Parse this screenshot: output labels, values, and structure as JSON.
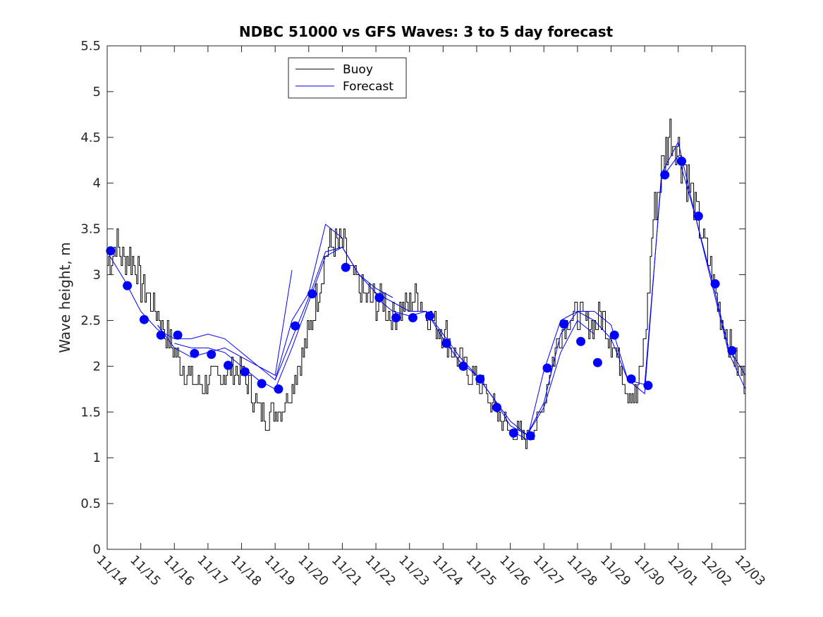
{
  "chart_data": {
    "type": "line",
    "title": "NDBC 51000 vs GFS Waves: 3 to 5 day forecast",
    "xlabel": "",
    "ylabel": "Wave height, m",
    "ylim": [
      0,
      5.5
    ],
    "xlim_days": [
      0,
      19
    ],
    "y_ticks": [
      0,
      0.5,
      1,
      1.5,
      2,
      2.5,
      3,
      3.5,
      4,
      4.5,
      5,
      5.5
    ],
    "y_tick_labels": [
      "0",
      "0.5",
      "1",
      "1.5",
      "2",
      "2.5",
      "3",
      "3.5",
      "4",
      "4.5",
      "5",
      "5.5"
    ],
    "x_tick_labels": [
      "11/14",
      "11/15",
      "11/16",
      "11/17",
      "11/18",
      "11/19",
      "11/20",
      "11/21",
      "11/22",
      "11/23",
      "11/24",
      "11/25",
      "11/26",
      "11/27",
      "11/28",
      "11/29",
      "11/30",
      "12/01",
      "12/02",
      "12/03"
    ],
    "grid": false,
    "legend": {
      "location": "top-left",
      "entries": [
        {
          "label": "Buoy",
          "color": "#000000"
        },
        {
          "label": "Forecast",
          "color": "#0000ff"
        }
      ]
    },
    "buoy_color": "#000000",
    "forecast_color": "#0000ff",
    "marker_color": "#0000ff",
    "buoy_series": {
      "name": "Buoy",
      "x": [
        0,
        0.25,
        0.5,
        0.75,
        1,
        1.25,
        1.5,
        1.75,
        2,
        2.25,
        2.5,
        2.75,
        3,
        3.25,
        3.5,
        3.75,
        4,
        4.25,
        4.5,
        4.75,
        5,
        5.25,
        5.5,
        5.75,
        6,
        6.25,
        6.5,
        6.75,
        7,
        7.25,
        7.5,
        7.75,
        8,
        8.25,
        8.5,
        8.75,
        9,
        9.25,
        9.5,
        9.75,
        10,
        10.25,
        10.5,
        10.75,
        11,
        11.25,
        11.5,
        11.75,
        12,
        12.25,
        12.5,
        12.75,
        13,
        13.25,
        13.5,
        13.75,
        14,
        14.25,
        14.5,
        14.75,
        15,
        15.25,
        15.5,
        15.75,
        16,
        16.25,
        16.5,
        16.75,
        17,
        17.25,
        17.5,
        17.75,
        18,
        18.25,
        18.5,
        18.75,
        19
      ],
      "values": [
        3.1,
        3.35,
        3.15,
        3.2,
        2.9,
        2.75,
        2.55,
        2.35,
        2.15,
        2.0,
        1.85,
        1.8,
        1.85,
        1.9,
        1.9,
        1.95,
        1.9,
        1.75,
        1.55,
        1.45,
        1.5,
        1.6,
        1.8,
        2.05,
        2.35,
        2.8,
        3.25,
        3.35,
        3.3,
        3.0,
        2.85,
        2.75,
        2.7,
        2.7,
        2.55,
        2.6,
        2.7,
        2.75,
        2.6,
        2.45,
        2.4,
        2.2,
        2.05,
        1.95,
        1.85,
        1.7,
        1.55,
        1.4,
        1.3,
        1.25,
        1.25,
        1.3,
        1.65,
        2.1,
        2.35,
        2.55,
        2.55,
        2.5,
        2.45,
        2.55,
        2.3,
        2.05,
        1.75,
        1.65,
        2.3,
        3.6,
        4.15,
        4.55,
        4.4,
        4.1,
        3.7,
        3.35,
        3.0,
        2.55,
        2.3,
        2.0,
        1.8
      ]
    },
    "forecast_series": [
      {
        "name": "Forecast 1",
        "x": [
          0,
          0.5,
          1,
          1.5,
          2,
          2.5,
          3,
          3.5,
          4,
          4.5,
          5,
          5.5
        ],
        "values": [
          3.25,
          2.95,
          2.6,
          2.4,
          2.3,
          2.3,
          2.35,
          2.3,
          2.15,
          2.0,
          1.9,
          3.05
        ]
      },
      {
        "name": "Forecast 2",
        "x": [
          1.5,
          2,
          2.5,
          3,
          3.5,
          4,
          4.5,
          5,
          5.5,
          6,
          6.5,
          7
        ],
        "values": [
          2.45,
          2.2,
          2.1,
          2.15,
          2.2,
          2.1,
          2.0,
          1.85,
          2.5,
          2.8,
          3.55,
          3.4
        ]
      },
      {
        "name": "Forecast 3",
        "x": [
          2,
          2.5,
          3,
          3.5,
          4,
          4.5,
          5,
          5.5,
          6,
          6.5,
          7,
          7.5,
          8,
          8.5
        ],
        "values": [
          2.25,
          2.2,
          2.2,
          2.15,
          2.0,
          1.85,
          1.75,
          2.2,
          2.7,
          3.2,
          3.3,
          3.0,
          2.85,
          2.75
        ]
      },
      {
        "name": "Forecast 4",
        "x": [
          5,
          5.5,
          6,
          6.5,
          7,
          7.5,
          8,
          8.5,
          9,
          9.5,
          10,
          10.5,
          11,
          11.5,
          12,
          12.5,
          13,
          13.5,
          14,
          14.5
        ],
        "values": [
          1.85,
          2.3,
          2.75,
          3.25,
          3.3,
          3.0,
          2.8,
          2.7,
          2.6,
          2.6,
          2.35,
          2.1,
          1.9,
          1.65,
          1.4,
          1.25,
          1.55,
          2.15,
          2.5,
          2.35
        ]
      },
      {
        "name": "Forecast 5",
        "x": [
          8,
          8.5,
          9,
          9.5,
          10,
          10.5,
          11,
          11.5,
          12,
          12.5,
          13,
          13.5,
          14,
          14.5,
          15,
          15.5,
          16,
          16.5,
          17,
          17.5,
          18,
          18.5,
          19
        ],
        "values": [
          2.75,
          2.6,
          2.55,
          2.6,
          2.3,
          2.05,
          1.9,
          1.65,
          1.35,
          1.25,
          1.6,
          2.35,
          2.6,
          2.5,
          2.3,
          1.85,
          1.8,
          4.05,
          4.3,
          3.65,
          2.95,
          2.2,
          1.9
        ]
      },
      {
        "name": "Forecast 6",
        "x": [
          12,
          12.5,
          13,
          13.5,
          14,
          14.5,
          15,
          15.5,
          16,
          16.5,
          17,
          17.5,
          18,
          18.5,
          19
        ],
        "values": [
          1.3,
          1.2,
          1.95,
          2.5,
          2.6,
          2.6,
          2.45,
          1.85,
          1.7,
          4.1,
          4.45,
          3.65,
          2.9,
          2.15,
          1.75
        ]
      }
    ],
    "forecast_markers": {
      "x": [
        0.1,
        0.6,
        1.1,
        1.6,
        2.1,
        2.6,
        3.1,
        3.6,
        4.1,
        4.6,
        5.1,
        5.6,
        6.1,
        7.1,
        8.1,
        8.6,
        9.1,
        9.6,
        10.1,
        10.6,
        11.1,
        11.6,
        12.1,
        12.6,
        13.1,
        13.6,
        14.1,
        14.6,
        15.1,
        15.6,
        16.1,
        16.6,
        17.1,
        17.6,
        18.1,
        18.6
      ],
      "values": [
        3.26,
        2.88,
        2.51,
        2.34,
        2.34,
        2.14,
        2.13,
        2.01,
        1.94,
        1.81,
        1.75,
        2.44,
        2.79,
        3.08,
        2.75,
        2.53,
        2.53,
        2.55,
        2.25,
        2.0,
        1.86,
        1.55,
        1.27,
        1.24,
        1.98,
        2.46,
        2.27,
        2.04,
        2.34,
        1.86,
        1.79,
        4.09,
        4.24,
        3.64,
        2.9,
        2.17
      ]
    }
  }
}
